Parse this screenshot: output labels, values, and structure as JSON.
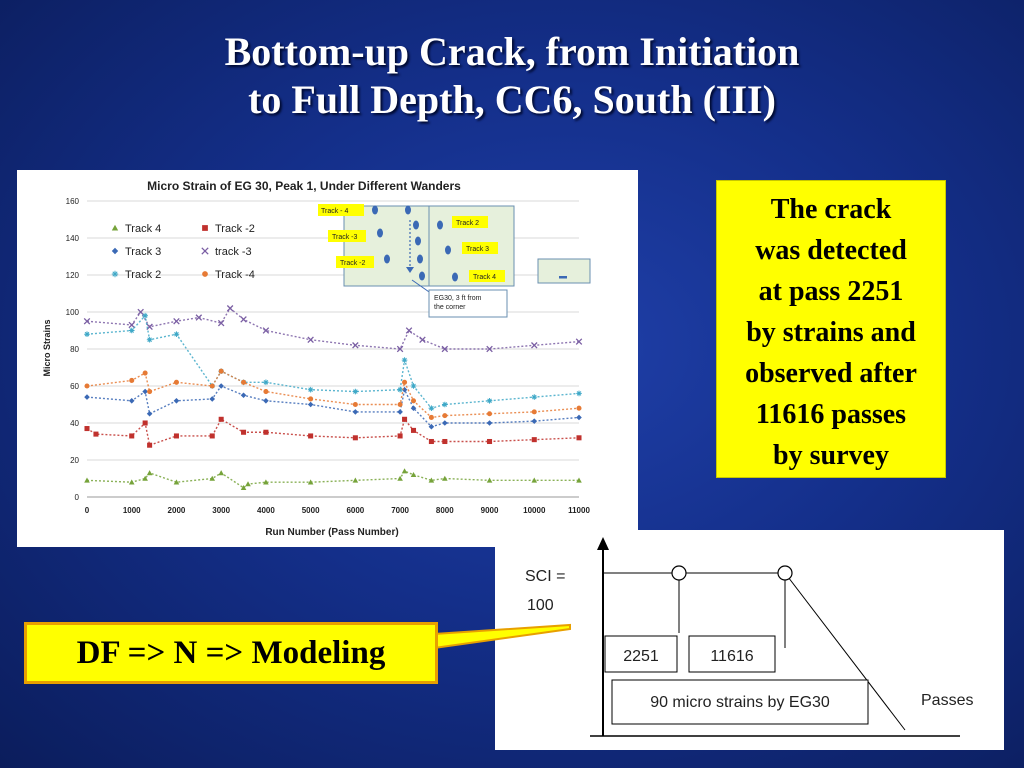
{
  "slide": {
    "title_line1": "Bottom-up Crack, from Initiation",
    "title_line2": "to Full Depth, CC6, South (III)",
    "callout_lines": [
      "The crack",
      "was detected",
      "at pass 2251",
      "by strains and",
      "observed after",
      "11616 passes",
      "by survey"
    ],
    "df_label": "DF => N => Modeling"
  },
  "colors": {
    "track4": "#76a33a",
    "track_m2": "#c0312d",
    "track3": "#3b69b5",
    "track_m3": "#7a5ea3",
    "track2": "#3ea8c7",
    "track_m4": "#e67a35",
    "callout_bg": "#ffff00",
    "df_border": "#e8a000"
  },
  "chart_data": {
    "type": "scatter",
    "title": "Micro Strain of EG 30, Peak 1,  Under Different Wanders",
    "xlabel": "Run  Number (Pass Number)",
    "ylabel": "Micro Strains",
    "xlim": [
      0,
      11000
    ],
    "ylim": [
      0,
      160
    ],
    "xticks": [
      0,
      1000,
      2000,
      3000,
      4000,
      5000,
      6000,
      7000,
      8000,
      9000,
      10000,
      11000
    ],
    "yticks": [
      0,
      20,
      40,
      60,
      80,
      100,
      120,
      140,
      160
    ],
    "grid": true,
    "legend_position": "top-left",
    "series": [
      {
        "name": "Track 4",
        "marker": "triangle",
        "color_key": "track4",
        "x": [
          0,
          1000,
          1300,
          1400,
          2000,
          2800,
          3000,
          3500,
          3600,
          4000,
          5000,
          6000,
          7000,
          7100,
          7300,
          7700,
          8000,
          9000,
          10000,
          11000
        ],
        "y": [
          9,
          8,
          10,
          13,
          8,
          10,
          13,
          5,
          7,
          8,
          8,
          9,
          10,
          14,
          12,
          9,
          10,
          9,
          9,
          9
        ]
      },
      {
        "name": "Track -2",
        "marker": "square",
        "color_key": "track_m2",
        "x": [
          0,
          200,
          1000,
          1300,
          1400,
          2000,
          2800,
          3000,
          3500,
          4000,
          5000,
          6000,
          7000,
          7100,
          7300,
          7700,
          8000,
          9000,
          10000,
          11000
        ],
        "y": [
          37,
          34,
          33,
          40,
          28,
          33,
          33,
          42,
          35,
          35,
          33,
          32,
          33,
          42,
          36,
          30,
          30,
          30,
          31,
          32
        ]
      },
      {
        "name": "Track 3",
        "marker": "diamond",
        "color_key": "track3",
        "x": [
          0,
          1000,
          1300,
          1400,
          2000,
          2800,
          3000,
          3500,
          4000,
          5000,
          6000,
          7000,
          7100,
          7300,
          7700,
          8000,
          9000,
          10000,
          11000
        ],
        "y": [
          54,
          52,
          57,
          45,
          52,
          53,
          60,
          55,
          52,
          50,
          46,
          46,
          58,
          48,
          38,
          40,
          40,
          41,
          43
        ]
      },
      {
        "name": "track -3",
        "marker": "x",
        "color_key": "track_m3",
        "x": [
          0,
          1000,
          1200,
          1400,
          2000,
          2500,
          3000,
          3200,
          3500,
          4000,
          5000,
          6000,
          7000,
          7200,
          7500,
          8000,
          9000,
          10000,
          11000
        ],
        "y": [
          95,
          93,
          100,
          92,
          95,
          97,
          94,
          102,
          96,
          90,
          85,
          82,
          80,
          90,
          85,
          80,
          80,
          82,
          84
        ]
      },
      {
        "name": "Track 2",
        "marker": "star",
        "color_key": "track2",
        "x": [
          0,
          1000,
          1300,
          1400,
          2000,
          2800,
          3000,
          3500,
          4000,
          5000,
          6000,
          7000,
          7100,
          7300,
          7700,
          8000,
          9000,
          10000,
          11000
        ],
        "y": [
          88,
          90,
          98,
          85,
          88,
          60,
          68,
          62,
          62,
          58,
          57,
          58,
          74,
          60,
          48,
          50,
          52,
          54,
          56
        ]
      },
      {
        "name": "Track -4",
        "marker": "circle",
        "color_key": "track_m4",
        "x": [
          0,
          1000,
          1300,
          1400,
          2000,
          2800,
          3000,
          3500,
          4000,
          5000,
          6000,
          7000,
          7100,
          7300,
          7700,
          8000,
          9000,
          10000,
          11000
        ],
        "y": [
          60,
          63,
          67,
          57,
          62,
          60,
          68,
          62,
          57,
          53,
          50,
          50,
          62,
          52,
          43,
          44,
          45,
          46,
          48
        ]
      }
    ],
    "inset": {
      "labels_left": [
        "Track  - 4",
        "Track -3",
        "Track -2"
      ],
      "labels_right": [
        "Track 2",
        "Track 3",
        "Track 4"
      ],
      "note": "EG30, 3 ft from the corner"
    }
  },
  "sci_diagram": {
    "y_label_line1": "SCI =",
    "y_label_line2": "100",
    "x_label": "Passes",
    "pass_labels": [
      "2251",
      "11616"
    ],
    "strain_label": "90 micro strains by EG30"
  }
}
